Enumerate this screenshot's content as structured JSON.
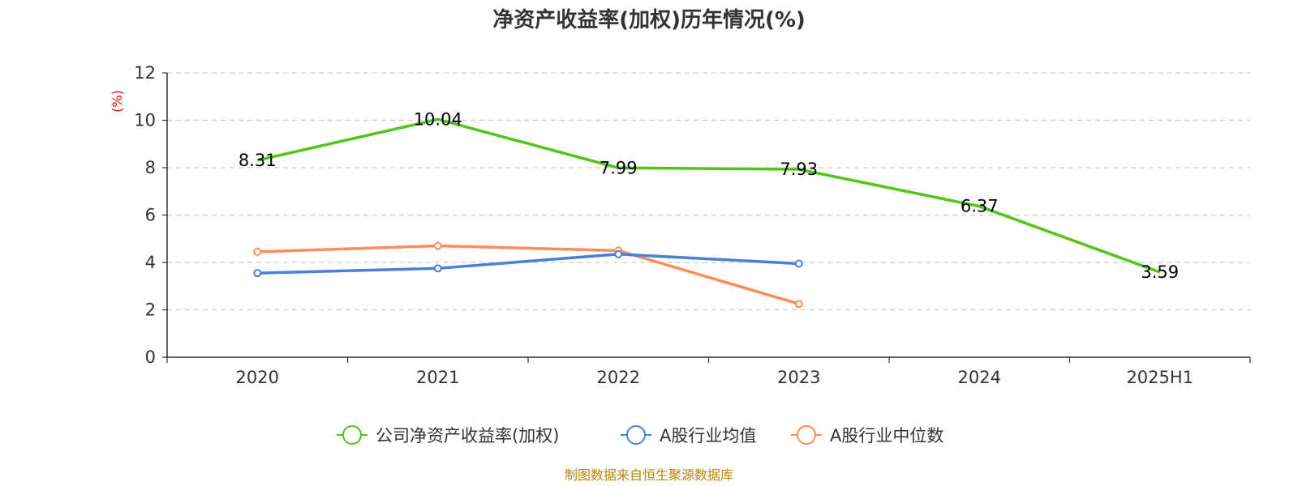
{
  "chart_data": {
    "type": "line",
    "title": "净资产收益率(加权)历年情况(%)",
    "ylabel": "(%)",
    "xlabel": "",
    "ylim": [
      0,
      12
    ],
    "yticks": [
      0,
      2,
      4,
      6,
      8,
      10,
      12
    ],
    "grid": true,
    "legend_position": "bottom",
    "categories": [
      "2020",
      "2021",
      "2022",
      "2023",
      "2024",
      "2025H1"
    ],
    "series": [
      {
        "name": "公司净资产收益率(加权)",
        "color": "#52c41a",
        "values": [
          8.31,
          10.04,
          7.99,
          7.93,
          6.37,
          3.59
        ],
        "show_labels": true,
        "show_markers": false
      },
      {
        "name": "A股行业均值",
        "color": "#4a7fdc",
        "values": [
          3.55,
          3.75,
          4.35,
          3.95,
          null,
          null
        ],
        "show_labels": false,
        "show_markers": true
      },
      {
        "name": "A股行业中位数",
        "color": "#ff8c5a",
        "values": [
          4.45,
          4.7,
          4.5,
          2.25,
          null,
          null
        ],
        "show_labels": false,
        "show_markers": true
      }
    ]
  },
  "source": "制图数据来自恒生聚源数据库"
}
